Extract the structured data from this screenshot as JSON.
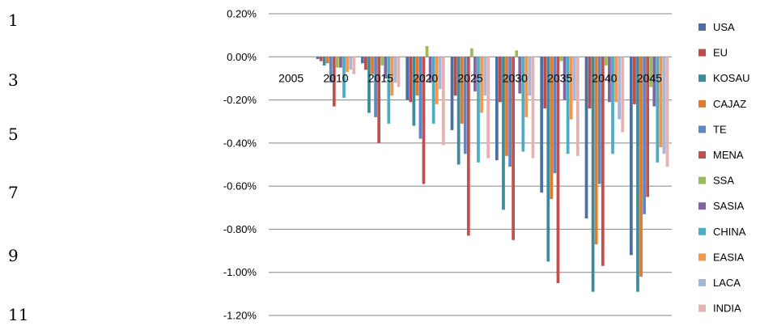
{
  "line_numbers": [
    "1",
    "3",
    "5",
    "7",
    "9",
    "11"
  ],
  "chart_data": {
    "type": "bar",
    "categories": [
      "2005",
      "2010",
      "2015",
      "2020",
      "2025",
      "2030",
      "2035",
      "2040",
      "2045"
    ],
    "yticks": [
      "0.20%",
      "0.00%",
      "-0.20%",
      "-0.40%",
      "-0.60%",
      "-0.80%",
      "-1.00%",
      "-1.20%"
    ],
    "ylim": [
      -1.2,
      0.2
    ],
    "grid": true,
    "legend_position": "right",
    "series": [
      {
        "name": "USA",
        "color": "#4a6fa5",
        "values": [
          0,
          -0.01,
          -0.03,
          -0.2,
          -0.34,
          -0.48,
          -0.63,
          -0.75,
          -0.92
        ]
      },
      {
        "name": "EU",
        "color": "#be4b48",
        "values": [
          0,
          -0.02,
          -0.06,
          -0.21,
          -0.18,
          -0.21,
          -0.24,
          -0.24,
          -0.22
        ]
      },
      {
        "name": "KOSAU",
        "color": "#3d8a9a",
        "values": [
          0,
          -0.04,
          -0.26,
          -0.32,
          -0.5,
          -0.71,
          -0.95,
          -1.09,
          -1.09
        ]
      },
      {
        "name": "CAJAZ",
        "color": "#e07b2c",
        "values": [
          0,
          -0.03,
          -0.08,
          -0.18,
          -0.31,
          -0.46,
          -0.66,
          -0.87,
          -1.02
        ]
      },
      {
        "name": "TE",
        "color": "#5b87c6",
        "values": [
          0,
          -0.12,
          -0.28,
          -0.38,
          -0.45,
          -0.51,
          -0.54,
          -0.59,
          -0.73
        ]
      },
      {
        "name": "MENA",
        "color": "#c0504d",
        "values": [
          0,
          -0.23,
          -0.4,
          -0.59,
          -0.83,
          -0.85,
          -1.05,
          -0.97,
          -0.65
        ]
      },
      {
        "name": "SSA",
        "color": "#9bbb59",
        "values": [
          0,
          -0.05,
          -0.04,
          0.05,
          0.04,
          0.03,
          -0.02,
          -0.04,
          -0.14
        ]
      },
      {
        "name": "SASIA",
        "color": "#8064a2",
        "values": [
          0,
          -0.05,
          -0.1,
          -0.12,
          -0.16,
          -0.17,
          -0.2,
          -0.21,
          -0.23
        ]
      },
      {
        "name": "CHINA",
        "color": "#4bacc6",
        "values": [
          0,
          -0.19,
          -0.31,
          -0.31,
          -0.49,
          -0.44,
          -0.45,
          -0.45,
          -0.49
        ]
      },
      {
        "name": "EASIA",
        "color": "#f79646",
        "values": [
          0,
          -0.07,
          -0.18,
          -0.22,
          -0.26,
          -0.28,
          -0.29,
          -0.21,
          -0.42
        ]
      },
      {
        "name": "LACA",
        "color": "#a5b7db",
        "values": [
          0,
          -0.06,
          -0.12,
          -0.15,
          -0.18,
          -0.18,
          -0.2,
          -0.29,
          -0.45
        ]
      },
      {
        "name": "INDIA",
        "color": "#e6b1b0",
        "values": [
          0,
          -0.08,
          -0.14,
          -0.41,
          -0.47,
          -0.47,
          -0.46,
          -0.35,
          -0.51
        ]
      }
    ]
  }
}
